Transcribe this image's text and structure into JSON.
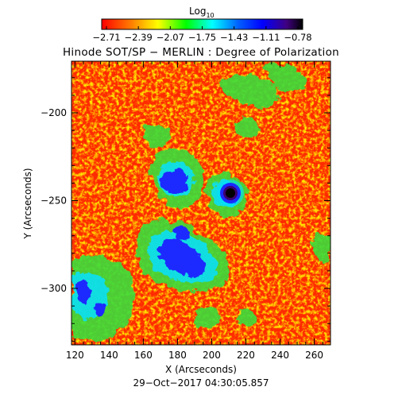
{
  "colorbar": {
    "title_main": "Log",
    "title_sub": "10",
    "ticks": [
      "−2.71",
      "−2.39",
      "−2.07",
      "−1.75",
      "−1.43",
      "−1.11",
      "−0.78"
    ],
    "colormap": "rainbow (red → orange → yellow → green → cyan → blue → purple → black)"
  },
  "title": "Hinode SOT/SP − MERLIN : Degree of Polarization",
  "x_axis": {
    "label": "X (Arcseconds)",
    "ticks": [
      "120",
      "140",
      "160",
      "180",
      "200",
      "220",
      "240",
      "260"
    ]
  },
  "y_axis": {
    "label": "Y (Arcseconds)",
    "ticks": [
      "−200",
      "−250",
      "−300"
    ]
  },
  "timestamp": "29−Oct−2017 04:30:05.857",
  "colors": {
    "background_red": "#ff2a00",
    "orange": "#ff8c00",
    "yellow": "#ffe000",
    "green": "#3cdc3c",
    "cyan": "#00e0ff",
    "blue": "#1a2aff",
    "purple": "#3a0070",
    "black": "#000000"
  }
}
